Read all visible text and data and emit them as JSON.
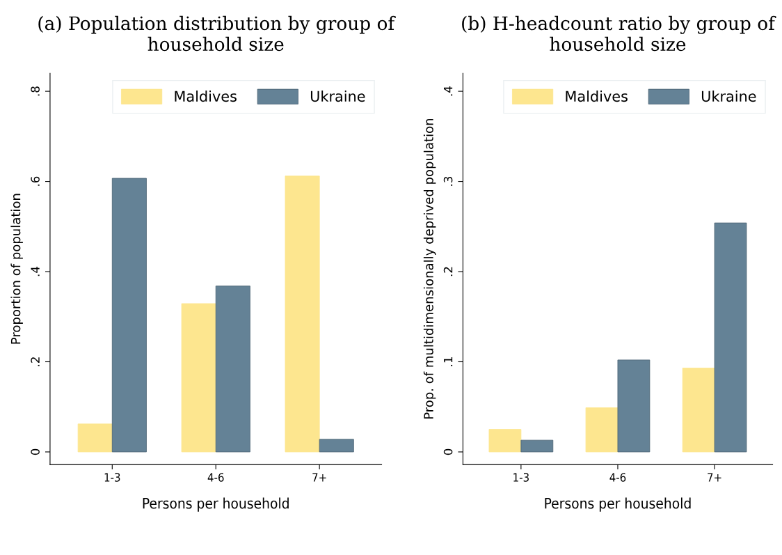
{
  "chart_data": [
    {
      "type": "bar",
      "title": "(a) Population distribution by group of household size",
      "xlabel": "Persons per household",
      "ylabel": "Proportion of population",
      "categories": [
        "1-3",
        "4-6",
        "7+"
      ],
      "series": [
        {
          "name": "Maldives",
          "color": "#fde68f",
          "values": [
            0.062,
            0.329,
            0.612
          ]
        },
        {
          "name": "Ukraine",
          "color": "#648296",
          "values": [
            0.607,
            0.368,
            0.028
          ]
        }
      ],
      "ylim": [
        -0.028,
        0.84
      ],
      "yticks": [
        {
          "value": 0,
          "label": "0"
        },
        {
          "value": 0.2,
          "label": ".2"
        },
        {
          "value": 0.4,
          "label": ".4"
        },
        {
          "value": 0.6,
          "label": ".6"
        },
        {
          "value": 0.8,
          "label": ".8"
        }
      ],
      "grid": false,
      "legend": "top right"
    },
    {
      "type": "bar",
      "title": "(b) H-headcount ratio by group of household size",
      "xlabel": "Persons per household",
      "ylabel": "Prop. of multidimensionally deprived population",
      "categories": [
        "1-3",
        "4-6",
        "7+"
      ],
      "series": [
        {
          "name": "Maldives",
          "color": "#fde68f",
          "values": [
            0.025,
            0.049,
            0.093
          ]
        },
        {
          "name": "Ukraine",
          "color": "#648296",
          "values": [
            0.013,
            0.102,
            0.254
          ]
        }
      ],
      "ylim": [
        -0.014,
        0.42
      ],
      "yticks": [
        {
          "value": 0,
          "label": "0"
        },
        {
          "value": 0.1,
          "label": ".1"
        },
        {
          "value": 0.2,
          "label": ".2"
        },
        {
          "value": 0.3,
          "label": ".3"
        },
        {
          "value": 0.4,
          "label": ".4"
        }
      ],
      "grid": false,
      "legend": "top right"
    }
  ]
}
